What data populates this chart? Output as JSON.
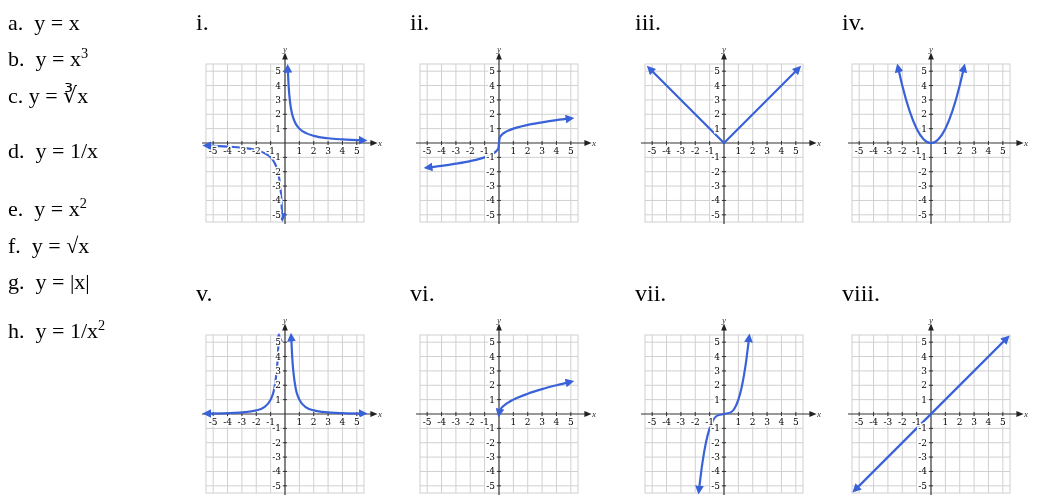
{
  "chart_data": [
    {
      "type": "other",
      "annotations": [
        "a.  y = x",
        "b.  y = x$^{3}$",
        "c. y = ∛x",
        "d.  y = 1/x",
        "e.  y = x$^{2}$",
        "f.  y = √x",
        "g.  y = |x|",
        "h.  y = 1/x$^{2}$"
      ]
    },
    {
      "type": "line",
      "title": "i.",
      "xlabel": "x",
      "ylabel": "y",
      "xlim": [
        -5.5,
        5.5
      ],
      "ylim": [
        -5.5,
        5.5
      ],
      "xticks": [
        -5,
        -4,
        -3,
        -2,
        -1,
        1,
        2,
        3,
        4,
        5
      ],
      "yticks": [
        -5,
        -4,
        -3,
        -2,
        -1,
        1,
        2,
        3,
        4,
        5
      ],
      "grid": true,
      "series": [
        {
          "color": "#3a62d8",
          "x": [
            -5.5,
            -4,
            -3,
            -2,
            -1.5,
            -1,
            -0.7,
            -0.5,
            -0.35,
            -0.25,
            -0.19
          ],
          "values": [
            -0.18,
            -0.25,
            -0.33,
            -0.5,
            -0.67,
            -1,
            -1.43,
            -2,
            -2.86,
            -4,
            -5.26
          ]
        },
        {
          "color": "#3a62d8",
          "x": [
            0.19,
            0.25,
            0.35,
            0.5,
            0.7,
            1,
            1.5,
            2,
            3,
            4,
            5.5
          ],
          "values": [
            5.26,
            4,
            2.86,
            2,
            1.43,
            1,
            0.67,
            0.5,
            0.33,
            0.25,
            0.18
          ]
        }
      ]
    },
    {
      "type": "line",
      "title": "ii.",
      "xlabel": "x",
      "ylabel": "y",
      "xlim": [
        -5.5,
        5.5
      ],
      "ylim": [
        -5.5,
        5.5
      ],
      "xticks": [
        -5,
        -4,
        -3,
        -2,
        -1,
        1,
        2,
        3,
        4,
        5
      ],
      "yticks": [
        -5,
        -4,
        -3,
        -2,
        -1,
        1,
        2,
        3,
        4,
        5
      ],
      "grid": true,
      "series": [
        {
          "color": "#3a62d8",
          "x": [
            -5,
            -4,
            -3,
            -2,
            -1,
            -0.5,
            -0.2,
            -0.05,
            0,
            0.05,
            0.2,
            0.5,
            1,
            2,
            3,
            4,
            5
          ],
          "values": [
            -1.71,
            -1.59,
            -1.44,
            -1.26,
            -1,
            -0.79,
            -0.58,
            -0.37,
            0,
            0.37,
            0.58,
            0.79,
            1,
            1.26,
            1.44,
            1.59,
            1.71
          ]
        }
      ]
    },
    {
      "type": "line",
      "title": "iii.",
      "xlabel": "x",
      "ylabel": "y",
      "xlim": [
        -5.5,
        5.5
      ],
      "ylim": [
        -5.5,
        5.5
      ],
      "xticks": [
        -5,
        -4,
        -3,
        -2,
        -1,
        1,
        2,
        3,
        4,
        5
      ],
      "yticks": [
        -5,
        -4,
        -3,
        -2,
        -1,
        1,
        2,
        3,
        4,
        5
      ],
      "grid": true,
      "series": [
        {
          "color": "#3a62d8",
          "x": [
            -5.2,
            0,
            5.2
          ],
          "values": [
            5.2,
            0,
            5.2
          ]
        }
      ]
    },
    {
      "type": "line",
      "title": "iv.",
      "xlabel": "x",
      "ylabel": "y",
      "xlim": [
        -5.5,
        5.5
      ],
      "ylim": [
        -5.5,
        5.5
      ],
      "xticks": [
        -5,
        -4,
        -3,
        -2,
        -1,
        1,
        2,
        3,
        4,
        5
      ],
      "yticks": [
        -5,
        -4,
        -3,
        -2,
        -1,
        1,
        2,
        3,
        4,
        5
      ],
      "grid": true,
      "series": [
        {
          "color": "#3a62d8",
          "x": [
            -2.3,
            -2,
            -1.5,
            -1,
            -0.5,
            0,
            0.5,
            1,
            1.5,
            2,
            2.3
          ],
          "values": [
            5.29,
            4,
            2.25,
            1,
            0.25,
            0,
            0.25,
            1,
            2.25,
            4,
            5.29
          ]
        }
      ]
    },
    {
      "type": "line",
      "title": "v.",
      "xlabel": "x",
      "ylabel": "y",
      "xlim": [
        -5.5,
        5.5
      ],
      "ylim": [
        -5.5,
        5.5
      ],
      "xticks": [
        -5,
        -4,
        -3,
        -2,
        -1,
        1,
        2,
        3,
        4,
        5
      ],
      "yticks": [
        -5,
        -4,
        -3,
        -2,
        -1,
        1,
        2,
        3,
        4,
        5
      ],
      "grid": true,
      "series": [
        {
          "color": "#3a62d8",
          "x": [
            -5.5,
            -4,
            -3,
            -2,
            -1.5,
            -1,
            -0.7,
            -0.5,
            -0.43
          ],
          "values": [
            0.03,
            0.06,
            0.11,
            0.25,
            0.44,
            1,
            2.04,
            4,
            5.41
          ]
        },
        {
          "color": "#3a62d8",
          "x": [
            0.43,
            0.5,
            0.7,
            1,
            1.5,
            2,
            3,
            4,
            5.5
          ],
          "values": [
            5.41,
            4,
            2.04,
            1,
            0.44,
            0.25,
            0.11,
            0.06,
            0.03
          ]
        }
      ]
    },
    {
      "type": "line",
      "title": "vi.",
      "xlabel": "x",
      "ylabel": "y",
      "xlim": [
        -5.5,
        5.5
      ],
      "ylim": [
        -5.5,
        5.5
      ],
      "xticks": [
        -5,
        -4,
        -3,
        -2,
        -1,
        1,
        2,
        3,
        4,
        5
      ],
      "yticks": [
        -5,
        -4,
        -3,
        -2,
        -1,
        1,
        2,
        3,
        4,
        5
      ],
      "grid": true,
      "series": [
        {
          "color": "#3a62d8",
          "x": [
            0,
            0.05,
            0.25,
            0.5,
            1,
            2,
            3,
            4,
            5
          ],
          "values": [
            0,
            0.22,
            0.5,
            0.71,
            1,
            1.41,
            1.73,
            2,
            2.24
          ]
        }
      ]
    },
    {
      "type": "line",
      "title": "vii.",
      "xlabel": "x",
      "ylabel": "y",
      "xlim": [
        -5.5,
        5.5
      ],
      "ylim": [
        -5.5,
        5.5
      ],
      "xticks": [
        -5,
        -4,
        -3,
        -2,
        -1,
        1,
        2,
        3,
        4,
        5
      ],
      "yticks": [
        -5,
        -4,
        -3,
        -2,
        -1,
        1,
        2,
        3,
        4,
        5
      ],
      "grid": true,
      "series": [
        {
          "color": "#3a62d8",
          "x": [
            -1.75,
            -1.5,
            -1.25,
            -1,
            -0.75,
            -0.5,
            0,
            0.5,
            0.75,
            1,
            1.25,
            1.5,
            1.75
          ],
          "values": [
            -5.36,
            -3.38,
            -1.95,
            -1,
            -0.42,
            -0.13,
            0,
            0.13,
            0.42,
            1,
            1.95,
            3.38,
            5.36
          ]
        }
      ]
    },
    {
      "type": "line",
      "title": "viii.",
      "xlabel": "x",
      "ylabel": "y",
      "xlim": [
        -5.5,
        5.5
      ],
      "ylim": [
        -5.5,
        5.5
      ],
      "xticks": [
        -5,
        -4,
        -3,
        -2,
        -1,
        1,
        2,
        3,
        4,
        5
      ],
      "yticks": [
        -5,
        -4,
        -3,
        -2,
        -1,
        1,
        2,
        3,
        4,
        5
      ],
      "grid": true,
      "series": [
        {
          "color": "#3a62d8",
          "x": [
            -5.3,
            5.3
          ],
          "values": [
            -5.3,
            5.3
          ]
        }
      ]
    }
  ]
}
